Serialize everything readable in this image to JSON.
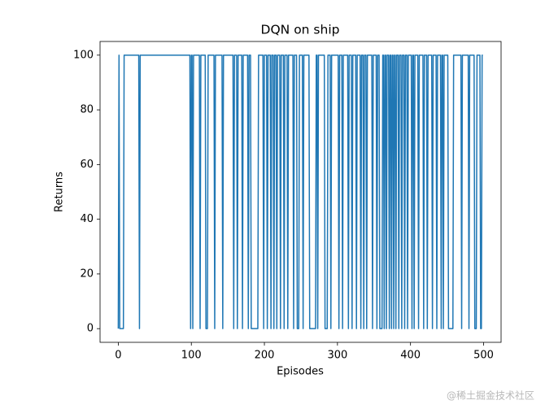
{
  "chart_data": {
    "type": "line",
    "title": "DQN on ship",
    "xlabel": "Episodes",
    "ylabel": "Returns",
    "color": "#1f77b4",
    "x": [
      0,
      1,
      2,
      7,
      8,
      28,
      29,
      30,
      98,
      99,
      100,
      101,
      102,
      103,
      111,
      112,
      113,
      119,
      120,
      122,
      123,
      131,
      132,
      133,
      142,
      143,
      144,
      157,
      158,
      159,
      162,
      163,
      164,
      169,
      170,
      171,
      177,
      178,
      179,
      181,
      182,
      191,
      192,
      198,
      199,
      200,
      203,
      204,
      205,
      208,
      209,
      210,
      212,
      213,
      214,
      216,
      217,
      218,
      221,
      222,
      223,
      226,
      227,
      228,
      231,
      232,
      233,
      239,
      240,
      241,
      244,
      245,
      247,
      248,
      252,
      253,
      254,
      261,
      262,
      270,
      271,
      272,
      273,
      274,
      282,
      283,
      286,
      287,
      290,
      291,
      292,
      301,
      302,
      303,
      306,
      307,
      308,
      314,
      315,
      316,
      319,
      320,
      321,
      325,
      326,
      327,
      331,
      332,
      333,
      335,
      336,
      337,
      339,
      340,
      341,
      347,
      348,
      349,
      353,
      354,
      355,
      357,
      358,
      361,
      362,
      363,
      364,
      365,
      366,
      367,
      368,
      370,
      371,
      372,
      373,
      374,
      375,
      376,
      377,
      378,
      379,
      380,
      381,
      383,
      384,
      385,
      387,
      388,
      389,
      391,
      392,
      393,
      395,
      396,
      397,
      401,
      402,
      403,
      404,
      405,
      406,
      410,
      411,
      412,
      417,
      418,
      419,
      422,
      423,
      424,
      429,
      430,
      431,
      435,
      436,
      437,
      441,
      442,
      443,
      444,
      445,
      446,
      451,
      452,
      458,
      459,
      469,
      470,
      471,
      479,
      480,
      481,
      487,
      488,
      490,
      491,
      495,
      496,
      497,
      498,
      499
    ],
    "values": [
      0,
      100,
      0,
      0,
      100,
      100,
      0,
      100,
      100,
      0,
      100,
      100,
      0,
      100,
      100,
      0,
      100,
      100,
      0,
      0,
      100,
      100,
      0,
      100,
      100,
      0,
      100,
      100,
      0,
      100,
      100,
      0,
      100,
      100,
      0,
      100,
      100,
      0,
      100,
      100,
      0,
      0,
      100,
      100,
      0,
      100,
      100,
      0,
      100,
      100,
      0,
      100,
      100,
      0,
      100,
      100,
      0,
      100,
      100,
      0,
      100,
      100,
      0,
      100,
      100,
      0,
      100,
      100,
      0,
      100,
      100,
      0,
      0,
      100,
      100,
      0,
      100,
      100,
      0,
      0,
      100,
      100,
      0,
      100,
      100,
      0,
      0,
      100,
      100,
      0,
      100,
      100,
      0,
      100,
      100,
      0,
      100,
      100,
      0,
      100,
      100,
      0,
      100,
      100,
      0,
      100,
      100,
      0,
      100,
      100,
      0,
      100,
      100,
      0,
      100,
      100,
      0,
      100,
      100,
      0,
      100,
      100,
      0,
      0,
      100,
      100,
      0,
      100,
      100,
      0,
      100,
      100,
      0,
      100,
      100,
      0,
      100,
      100,
      0,
      100,
      100,
      0,
      100,
      100,
      0,
      100,
      100,
      0,
      100,
      100,
      0,
      100,
      100,
      0,
      100,
      100,
      0,
      100,
      100,
      0,
      100,
      100,
      0,
      100,
      100,
      0,
      100,
      100,
      0,
      100,
      100,
      0,
      100,
      100,
      0,
      100,
      100,
      0,
      100,
      100,
      0,
      100,
      100,
      0,
      0,
      100,
      100,
      0,
      100,
      100,
      0,
      100,
      100,
      0,
      0,
      100,
      100,
      0,
      0,
      100,
      100
    ],
    "xlim": [
      -24.95,
      523.95
    ],
    "xticks": [
      0,
      100,
      200,
      300,
      400,
      500
    ],
    "ylim": [
      -5,
      105
    ],
    "yticks": [
      0,
      20,
      40,
      60,
      80,
      100
    ],
    "watermark": "@稀土掘金技术社区"
  }
}
